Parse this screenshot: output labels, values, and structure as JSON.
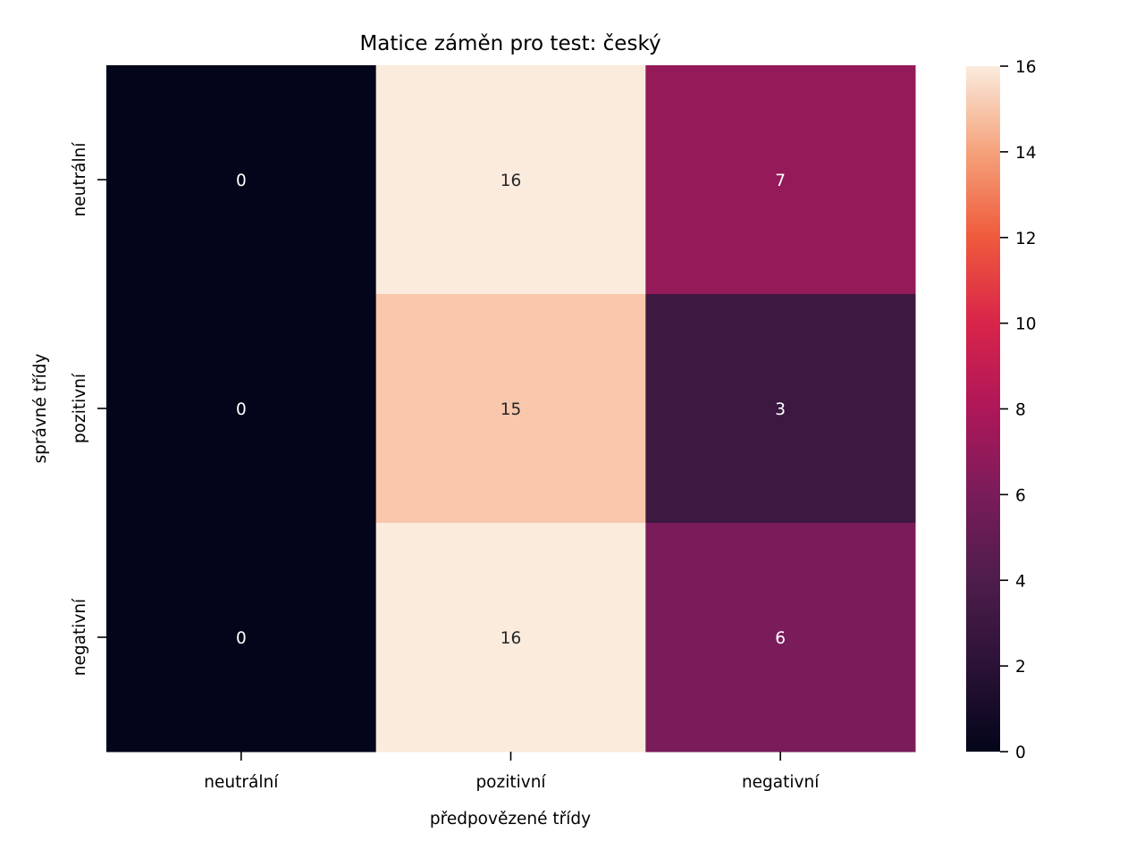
{
  "chart_data": {
    "type": "heatmap",
    "title": "Matice záměn pro test: český",
    "xlabel": "předpovězené třídy",
    "ylabel": "správné třídy",
    "x_categories": [
      "neutrální",
      "pozitivní",
      "negativní"
    ],
    "y_categories": [
      "neutrální",
      "pozitivní",
      "negativní"
    ],
    "values": [
      [
        0,
        16,
        7
      ],
      [
        0,
        15,
        3
      ],
      [
        0,
        16,
        6
      ]
    ],
    "colorbar": {
      "range": [
        0,
        16
      ],
      "ticks": [
        "0",
        "2",
        "4",
        "6",
        "8",
        "10",
        "12",
        "14",
        "16"
      ],
      "colormap": "rocket"
    },
    "grid": false
  }
}
